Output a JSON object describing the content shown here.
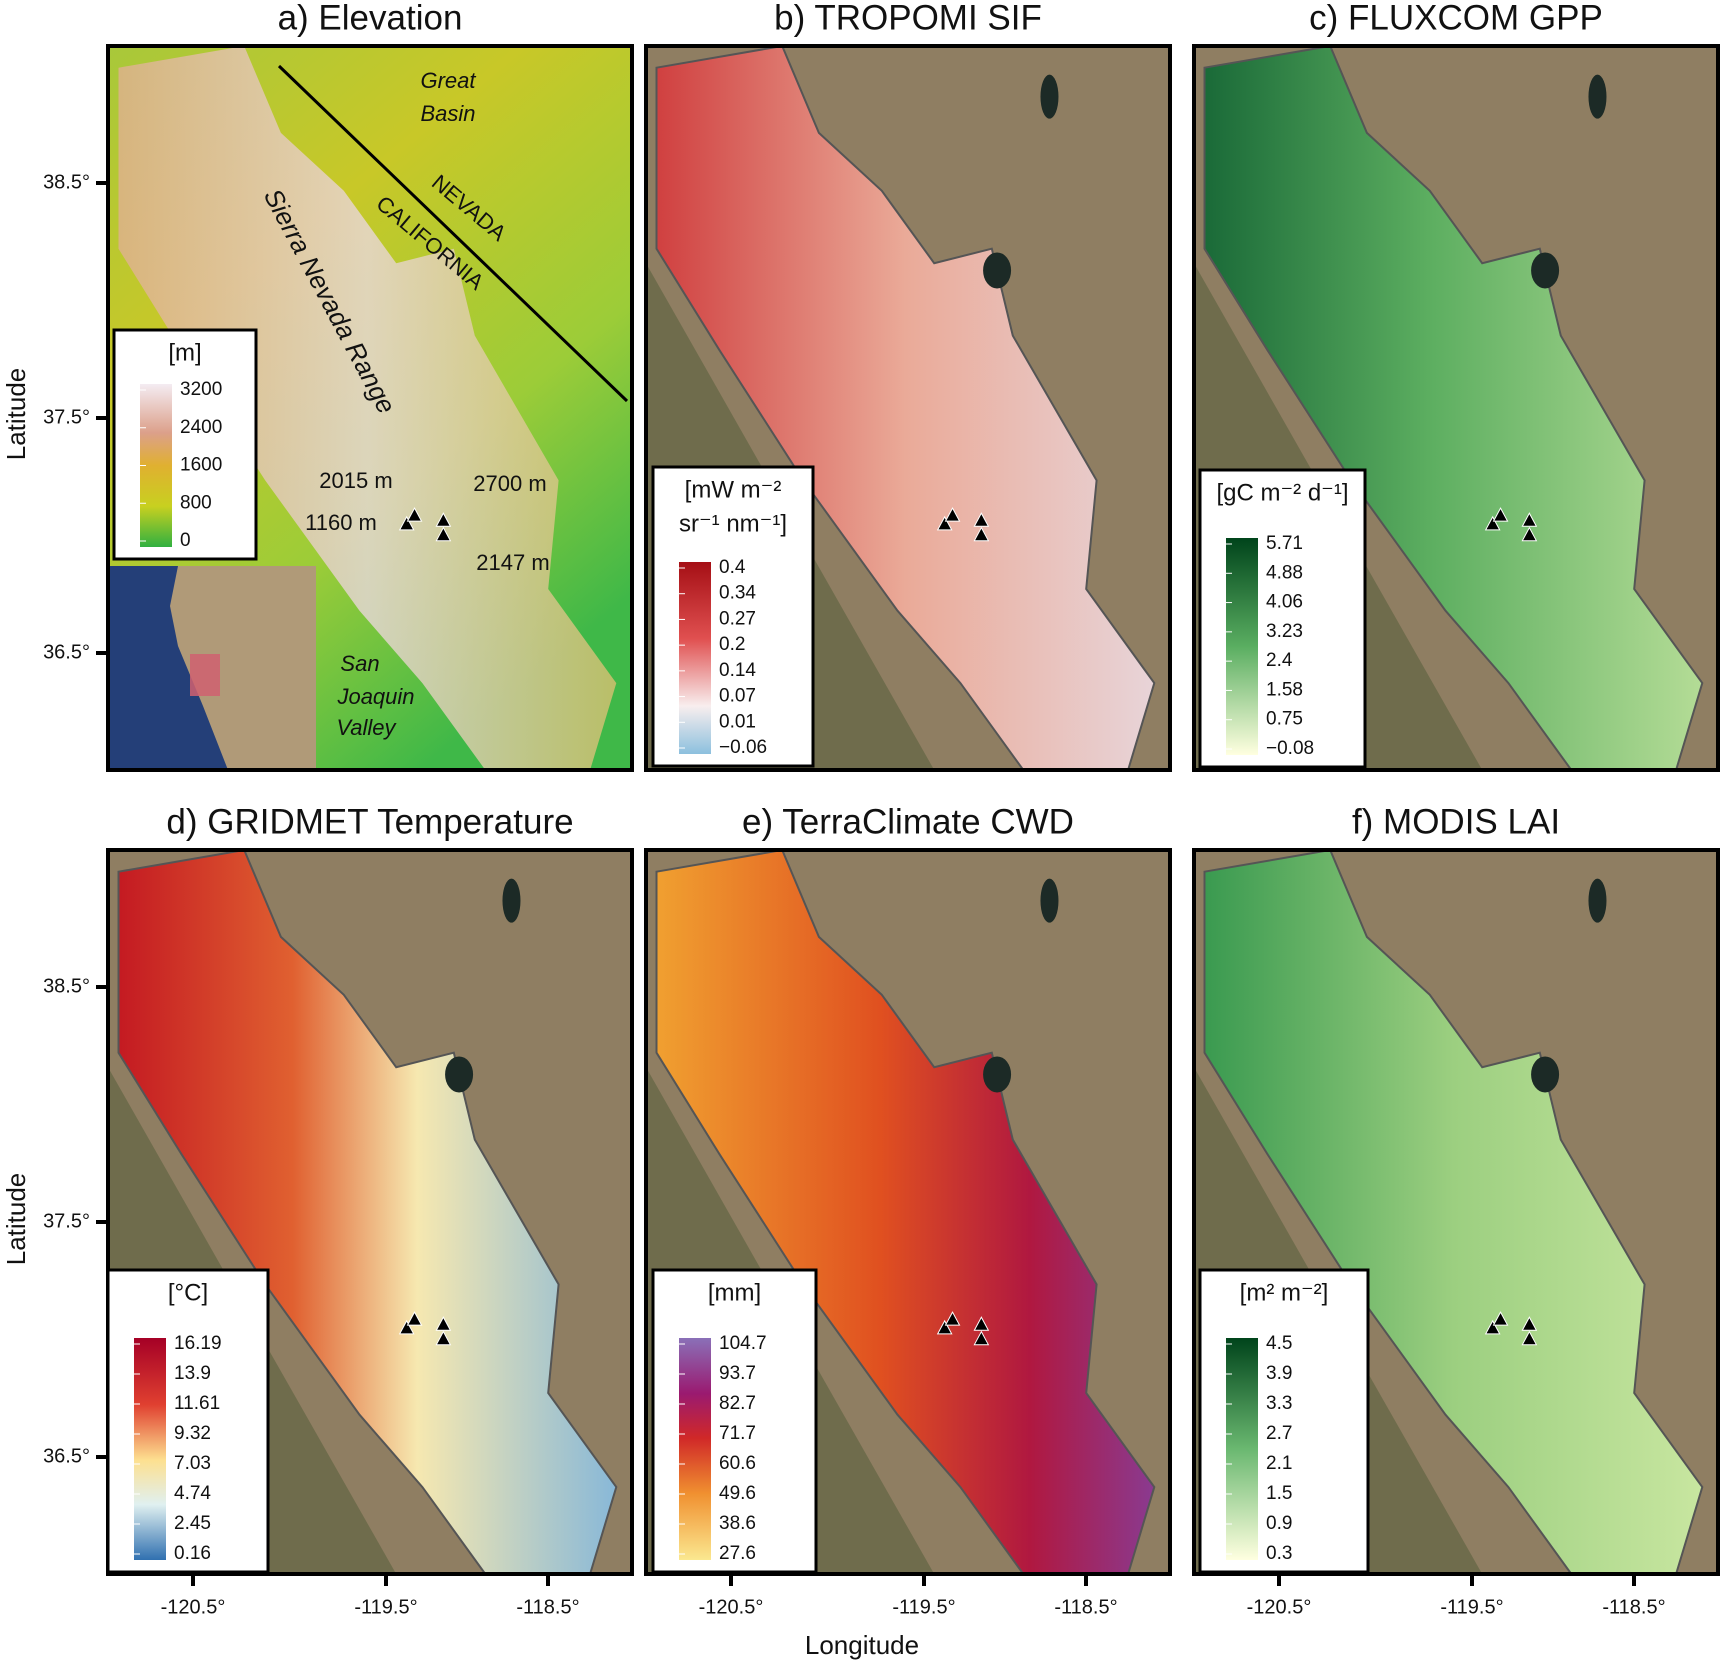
{
  "axes": {
    "y_label": "Latitude",
    "x_label": "Longitude",
    "x_ticks": [
      "-120.5°",
      "-119.5°",
      "-118.5°"
    ],
    "y_ticks": [
      "38.5°",
      "37.5°",
      "36.5°"
    ]
  },
  "panels": [
    {
      "title": "a) Elevation",
      "legend": {
        "title": [
          "[m]"
        ],
        "ticks": [
          "3200",
          "2400",
          "1600",
          "800",
          "0"
        ]
      },
      "labels": [
        "Great",
        "Basin",
        "NEVADA",
        "CALIFORNIA",
        "Sierra Nevada Range",
        "2015 m",
        "2700 m",
        "1160 m",
        "2147 m",
        "San",
        "Joaquin",
        "Valley"
      ]
    },
    {
      "title": "b) TROPOMI SIF",
      "legend": {
        "title": [
          "[mW m⁻²",
          "sr⁻¹ nm⁻¹]"
        ],
        "ticks": [
          "0.4",
          "0.34",
          "0.27",
          "0.2",
          "0.14",
          "0.07",
          "0.01",
          "−0.06"
        ]
      }
    },
    {
      "title": "c) FLUXCOM GPP",
      "legend": {
        "title": [
          "[gC m⁻² d⁻¹]"
        ],
        "ticks": [
          "5.71",
          "4.88",
          "4.06",
          "3.23",
          "2.4",
          "1.58",
          "0.75",
          "−0.08"
        ]
      }
    },
    {
      "title": "d) GRIDMET Temperature",
      "legend": {
        "title": [
          "[°C]"
        ],
        "ticks": [
          "16.19",
          "13.9",
          "11.61",
          "9.32",
          "7.03",
          "4.74",
          "2.45",
          "0.16"
        ]
      }
    },
    {
      "title": "e) TerraClimate CWD",
      "legend": {
        "title": [
          "[mm]"
        ],
        "ticks": [
          "104.7",
          "93.7",
          "82.7",
          "71.7",
          "60.6",
          "49.6",
          "38.6",
          "27.6"
        ]
      }
    },
    {
      "title": "f) MODIS LAI",
      "legend": {
        "title": [
          "[m² m⁻²]"
        ],
        "ticks": [
          "4.5",
          "3.9",
          "3.3",
          "2.7",
          "2.1",
          "1.5",
          "0.9",
          "0.3"
        ]
      }
    }
  ]
}
